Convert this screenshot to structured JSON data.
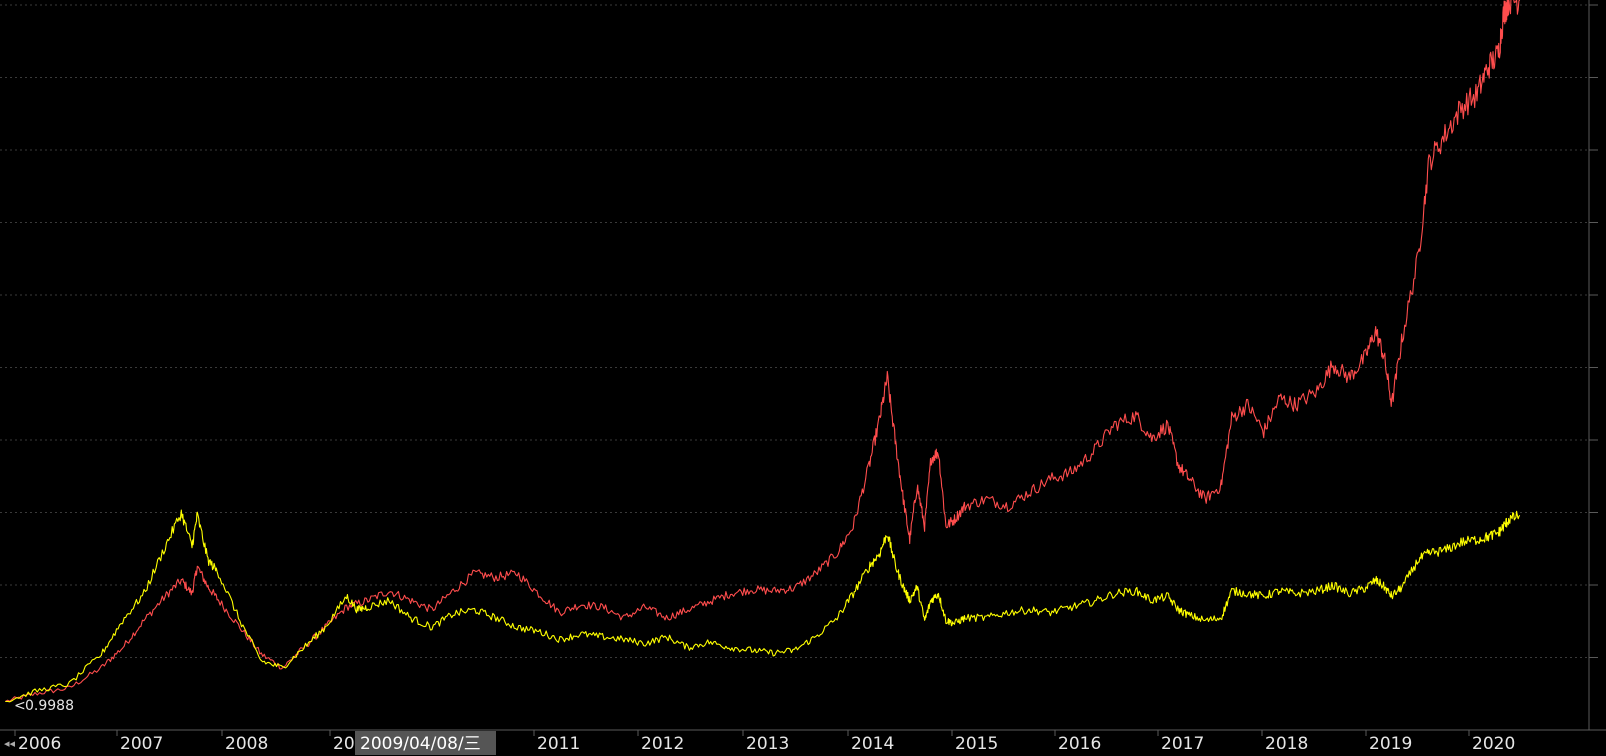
{
  "chart_data": {
    "type": "line",
    "title": "",
    "xlabel": "",
    "ylabel": "",
    "x_tick_labels": [
      "2006",
      "2007",
      "2008",
      "20",
      "2011",
      "2012",
      "2013",
      "2014",
      "2015",
      "2016",
      "2017",
      "2018",
      "2019",
      "2020"
    ],
    "start_value_label": "0.9988",
    "cursor_date_label": "2009/04/08/三",
    "grid": "horizontal dotted",
    "ylim": [
      0.9,
      6.2
    ],
    "xlim": [
      2005.95,
      2020.85
    ],
    "series": [
      {
        "color": "#ff4d4d",
        "points": [
          [
            2006.0,
            1.0
          ],
          [
            2006.3,
            1.06
          ],
          [
            2006.6,
            1.1
          ],
          [
            2006.9,
            1.25
          ],
          [
            2007.1,
            1.4
          ],
          [
            2007.3,
            1.6
          ],
          [
            2007.5,
            1.78
          ],
          [
            2007.65,
            1.9
          ],
          [
            2007.75,
            1.8
          ],
          [
            2007.8,
            2.0
          ],
          [
            2007.9,
            1.85
          ],
          [
            2008.0,
            1.75
          ],
          [
            2008.2,
            1.55
          ],
          [
            2008.4,
            1.35
          ],
          [
            2008.6,
            1.25
          ],
          [
            2008.8,
            1.4
          ],
          [
            2009.0,
            1.55
          ],
          [
            2009.2,
            1.7
          ],
          [
            2009.4,
            1.75
          ],
          [
            2009.6,
            1.82
          ],
          [
            2009.8,
            1.75
          ],
          [
            2010.0,
            1.68
          ],
          [
            2010.2,
            1.82
          ],
          [
            2010.4,
            1.95
          ],
          [
            2010.6,
            1.92
          ],
          [
            2010.8,
            1.95
          ],
          [
            2011.0,
            1.8
          ],
          [
            2011.2,
            1.66
          ],
          [
            2011.4,
            1.72
          ],
          [
            2011.6,
            1.7
          ],
          [
            2011.8,
            1.62
          ],
          [
            2012.0,
            1.7
          ],
          [
            2012.2,
            1.62
          ],
          [
            2012.4,
            1.68
          ],
          [
            2012.6,
            1.74
          ],
          [
            2012.8,
            1.8
          ],
          [
            2013.0,
            1.83
          ],
          [
            2013.2,
            1.82
          ],
          [
            2013.4,
            1.84
          ],
          [
            2013.6,
            1.95
          ],
          [
            2013.8,
            2.1
          ],
          [
            2013.95,
            2.3
          ],
          [
            2014.1,
            2.75
          ],
          [
            2014.2,
            3.1
          ],
          [
            2014.27,
            3.4
          ],
          [
            2014.35,
            2.9
          ],
          [
            2014.42,
            2.5
          ],
          [
            2014.48,
            2.2
          ],
          [
            2014.55,
            2.6
          ],
          [
            2014.62,
            2.3
          ],
          [
            2014.68,
            2.8
          ],
          [
            2014.75,
            2.85
          ],
          [
            2014.82,
            2.3
          ],
          [
            2014.9,
            2.35
          ],
          [
            2015.0,
            2.45
          ],
          [
            2015.2,
            2.5
          ],
          [
            2015.4,
            2.45
          ],
          [
            2015.6,
            2.55
          ],
          [
            2015.8,
            2.65
          ],
          [
            2016.0,
            2.7
          ],
          [
            2016.2,
            2.85
          ],
          [
            2016.4,
            3.05
          ],
          [
            2016.6,
            3.12
          ],
          [
            2016.75,
            2.95
          ],
          [
            2016.9,
            3.05
          ],
          [
            2017.0,
            2.75
          ],
          [
            2017.1,
            2.65
          ],
          [
            2017.25,
            2.5
          ],
          [
            2017.4,
            2.6
          ],
          [
            2017.5,
            3.1
          ],
          [
            2017.65,
            3.2
          ],
          [
            2017.8,
            3.0
          ],
          [
            2017.95,
            3.25
          ],
          [
            2018.1,
            3.2
          ],
          [
            2018.3,
            3.3
          ],
          [
            2018.45,
            3.5
          ],
          [
            2018.6,
            3.4
          ],
          [
            2018.75,
            3.55
          ],
          [
            2018.85,
            3.75
          ],
          [
            2018.93,
            3.55
          ],
          [
            2019.0,
            3.2
          ],
          [
            2019.1,
            3.7
          ],
          [
            2019.25,
            4.3
          ],
          [
            2019.35,
            5.0
          ],
          [
            2019.5,
            5.2
          ],
          [
            2019.65,
            5.4
          ],
          [
            2019.8,
            5.5
          ],
          [
            2019.9,
            5.7
          ],
          [
            2020.0,
            5.8
          ],
          [
            2020.05,
            6.1
          ],
          [
            2020.1,
            6.2
          ],
          [
            2020.2,
            6.2
          ]
        ]
      },
      {
        "color": "#ffff00",
        "points": [
          [
            2006.0,
            1.0
          ],
          [
            2006.3,
            1.08
          ],
          [
            2006.6,
            1.13
          ],
          [
            2006.9,
            1.35
          ],
          [
            2007.1,
            1.6
          ],
          [
            2007.3,
            1.8
          ],
          [
            2007.5,
            2.15
          ],
          [
            2007.65,
            2.4
          ],
          [
            2007.75,
            2.15
          ],
          [
            2007.8,
            2.38
          ],
          [
            2007.9,
            2.05
          ],
          [
            2008.0,
            1.95
          ],
          [
            2008.2,
            1.6
          ],
          [
            2008.4,
            1.3
          ],
          [
            2008.6,
            1.25
          ],
          [
            2008.8,
            1.4
          ],
          [
            2009.0,
            1.55
          ],
          [
            2009.2,
            1.78
          ],
          [
            2009.3,
            1.68
          ],
          [
            2009.4,
            1.7
          ],
          [
            2009.6,
            1.75
          ],
          [
            2009.8,
            1.62
          ],
          [
            2010.0,
            1.55
          ],
          [
            2010.2,
            1.65
          ],
          [
            2010.4,
            1.68
          ],
          [
            2010.6,
            1.62
          ],
          [
            2010.8,
            1.55
          ],
          [
            2011.0,
            1.52
          ],
          [
            2011.2,
            1.46
          ],
          [
            2011.4,
            1.5
          ],
          [
            2011.6,
            1.48
          ],
          [
            2011.8,
            1.46
          ],
          [
            2012.0,
            1.43
          ],
          [
            2012.2,
            1.48
          ],
          [
            2012.4,
            1.4
          ],
          [
            2012.6,
            1.44
          ],
          [
            2012.8,
            1.4
          ],
          [
            2013.0,
            1.38
          ],
          [
            2013.2,
            1.36
          ],
          [
            2013.4,
            1.38
          ],
          [
            2013.6,
            1.48
          ],
          [
            2013.8,
            1.62
          ],
          [
            2013.95,
            1.8
          ],
          [
            2014.1,
            2.0
          ],
          [
            2014.2,
            2.1
          ],
          [
            2014.27,
            2.25
          ],
          [
            2014.35,
            2.0
          ],
          [
            2014.42,
            1.85
          ],
          [
            2014.48,
            1.75
          ],
          [
            2014.55,
            1.85
          ],
          [
            2014.62,
            1.6
          ],
          [
            2014.68,
            1.75
          ],
          [
            2014.75,
            1.8
          ],
          [
            2014.82,
            1.6
          ],
          [
            2014.9,
            1.58
          ],
          [
            2015.0,
            1.62
          ],
          [
            2015.2,
            1.62
          ],
          [
            2015.4,
            1.66
          ],
          [
            2015.6,
            1.68
          ],
          [
            2015.8,
            1.66
          ],
          [
            2016.0,
            1.7
          ],
          [
            2016.2,
            1.74
          ],
          [
            2016.4,
            1.8
          ],
          [
            2016.6,
            1.82
          ],
          [
            2016.75,
            1.75
          ],
          [
            2016.9,
            1.78
          ],
          [
            2017.0,
            1.68
          ],
          [
            2017.1,
            1.64
          ],
          [
            2017.25,
            1.6
          ],
          [
            2017.4,
            1.62
          ],
          [
            2017.5,
            1.82
          ],
          [
            2017.65,
            1.8
          ],
          [
            2017.8,
            1.78
          ],
          [
            2017.95,
            1.82
          ],
          [
            2018.1,
            1.8
          ],
          [
            2018.3,
            1.82
          ],
          [
            2018.45,
            1.86
          ],
          [
            2018.6,
            1.8
          ],
          [
            2018.75,
            1.84
          ],
          [
            2018.85,
            1.9
          ],
          [
            2018.93,
            1.85
          ],
          [
            2019.0,
            1.78
          ],
          [
            2019.1,
            1.85
          ],
          [
            2019.25,
            2.05
          ],
          [
            2019.35,
            2.1
          ],
          [
            2019.5,
            2.12
          ],
          [
            2019.65,
            2.18
          ],
          [
            2019.8,
            2.2
          ],
          [
            2019.9,
            2.22
          ],
          [
            2020.0,
            2.25
          ],
          [
            2020.05,
            2.3
          ],
          [
            2020.1,
            2.35
          ],
          [
            2020.2,
            2.38
          ]
        ]
      }
    ]
  },
  "colors": {
    "background": "#000000",
    "grid": "#3a3a3a",
    "axis": "#5a5a5a",
    "cursor_label_bg": "#555555"
  },
  "nav": {
    "back_icon": "double-left-arrow-icon"
  }
}
